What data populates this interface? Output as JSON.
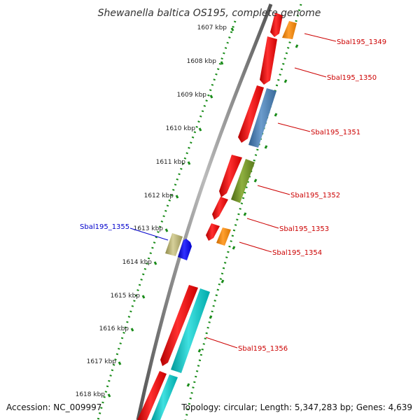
{
  "title": "Shewanella baltica OS195, complete genome",
  "accession": "Accession: NC_009997",
  "topology": "Topology: circular; Length: 5,347,283 bp; Genes: 4,639",
  "kbp_marks": [
    {
      "label": "1607 kbp"
    },
    {
      "label": "1608 kbp"
    },
    {
      "label": "1609 kbp"
    },
    {
      "label": "1610 kbp"
    },
    {
      "label": "1611 kbp"
    },
    {
      "label": "1612 kbp"
    },
    {
      "label": "1613 kbp"
    },
    {
      "label": "1614 kbp"
    },
    {
      "label": "1615 kbp"
    },
    {
      "label": "1616 kbp"
    },
    {
      "label": "1617 kbp"
    },
    {
      "label": "1618 kbp"
    }
  ],
  "gene_labels": [
    {
      "label": "Sbal195_1349",
      "color": "#cc0000"
    },
    {
      "label": "Sbal195_1350",
      "color": "#cc0000"
    },
    {
      "label": "Sbal195_1351",
      "color": "#cc0000"
    },
    {
      "label": "Sbal195_1352",
      "color": "#cc0000"
    },
    {
      "label": "Sbal195_1353",
      "color": "#cc0000"
    },
    {
      "label": "Sbal195_1354",
      "color": "#cc0000"
    },
    {
      "label": "Sbal195_1355",
      "color": "#0000cc"
    },
    {
      "label": "Sbal195_1356",
      "color": "#cc0000"
    }
  ],
  "colors": {
    "backbone": "#888888",
    "ruler_dots": "#1a8c1a",
    "cds": "#ff0000",
    "orange": "#ff8c00",
    "steelblue": "#4a7fb5",
    "olive": "#6b8e23",
    "khaki": "#bdb76b",
    "blue": "#0000ff",
    "cyan": "#00c8c8"
  }
}
